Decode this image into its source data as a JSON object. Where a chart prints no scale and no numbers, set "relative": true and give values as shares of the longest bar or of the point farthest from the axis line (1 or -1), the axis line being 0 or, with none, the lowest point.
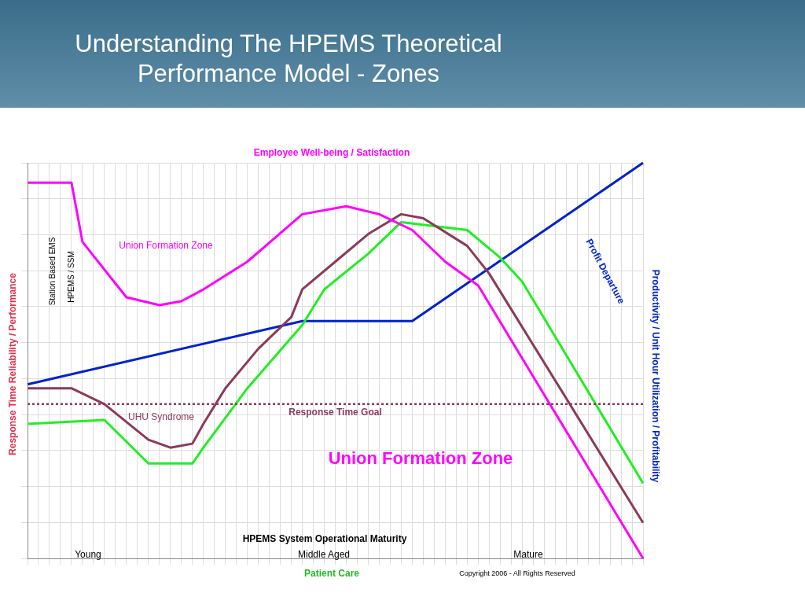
{
  "chart_data": {
    "type": "line",
    "title": "Understanding The HPEMS Theoretical Performance Model - Zones",
    "subtitle": "Employee Well-being / Satisfaction",
    "xlabel": "Patient Care",
    "ylabel": "Response Time Reliability / Performance",
    "y2label": "Productivity / Unit Hour Utilization / Profitability",
    "relative": true,
    "grid": true,
    "legend": false,
    "marker": "none",
    "categories": [
      null,
      null,
      null,
      null,
      null,
      null,
      null,
      null,
      null,
      null,
      null,
      null,
      null,
      null,
      null,
      null,
      null,
      null,
      null,
      null,
      null,
      null,
      null,
      null,
      null,
      null,
      null,
      null,
      null,
      null,
      null,
      null,
      null,
      null,
      null,
      null,
      null,
      null,
      null,
      null,
      null,
      null,
      null,
      null,
      null,
      null,
      null,
      null,
      null,
      null,
      null,
      null,
      null,
      null,
      null,
      null,
      null
    ],
    "series": [
      {
        "color": "#ff00ff",
        "values": [
          0.95,
          null,
          null,
          null,
          0.95,
          0.8,
          null,
          null,
          null,
          0.66,
          null,
          null,
          0.64,
          null,
          0.65,
          null,
          0.68,
          null,
          null,
          null,
          0.75,
          null,
          null,
          null,
          null,
          0.87,
          null,
          null,
          null,
          0.89,
          null,
          null,
          0.87,
          null,
          null,
          0.83,
          null,
          null,
          0.75,
          null,
          null,
          0.69,
          null,
          null,
          null,
          null,
          null,
          null,
          null,
          null,
          null,
          null,
          null,
          null,
          null,
          null,
          0
        ]
      },
      {
        "color": "#8b3a5a",
        "values": [
          0.43,
          null,
          null,
          null,
          0.43,
          null,
          null,
          0.39,
          null,
          null,
          null,
          0.3,
          null,
          0.28,
          null,
          0.29,
          0.34,
          null,
          0.43,
          null,
          null,
          0.53,
          null,
          null,
          0.61,
          0.68,
          null,
          null,
          0.75,
          null,
          null,
          0.82,
          null,
          null,
          0.87,
          null,
          0.86,
          null,
          null,
          null,
          0.79,
          null,
          0.72,
          null,
          null,
          null,
          null,
          null,
          null,
          null,
          null,
          null,
          null,
          null,
          null,
          null,
          0.09
        ]
      },
      {
        "color": "#22ee22",
        "values": [
          0.34,
          null,
          null,
          null,
          null,
          null,
          null,
          0.35,
          null,
          null,
          null,
          0.24,
          null,
          null,
          null,
          0.24,
          0.28,
          null,
          null,
          null,
          0.43,
          null,
          null,
          null,
          null,
          0.59,
          null,
          0.68,
          null,
          null,
          null,
          0.77,
          null,
          null,
          0.85,
          null,
          null,
          null,
          null,
          null,
          0.83,
          null,
          null,
          0.76,
          null,
          0.7,
          null,
          null,
          null,
          null,
          null,
          null,
          null,
          null,
          null,
          null,
          0.19
        ]
      },
      {
        "color": "#0022cc",
        "values": [
          0.44,
          null,
          null,
          null,
          null,
          null,
          null,
          null,
          null,
          null,
          null,
          null,
          null,
          null,
          null,
          null,
          null,
          null,
          null,
          null,
          null,
          null,
          null,
          null,
          null,
          0.6,
          null,
          null,
          null,
          null,
          null,
          null,
          null,
          null,
          null,
          0.6,
          null,
          null,
          null,
          null,
          null,
          null,
          null,
          null,
          null,
          null,
          null,
          null,
          null,
          null,
          null,
          null,
          null,
          null,
          null,
          null,
          1
        ]
      }
    ],
    "ref_lines": [
      {
        "axis": "y",
        "value": 0.39,
        "label": "Response Time Goal",
        "color": "#8b3a5a",
        "line_style": "dotted"
      }
    ],
    "annotations": [
      "Young",
      "Middle Aged",
      "Mature",
      "HPEMS System Operational Maturity",
      "Station Based EMS",
      "HPEMS / SSM",
      "Union Formation Zone",
      "UHU Syndrome",
      "Union Formation Zone",
      "Profit Departure",
      "Copyright 2006 - All Rights Reserved"
    ]
  }
}
